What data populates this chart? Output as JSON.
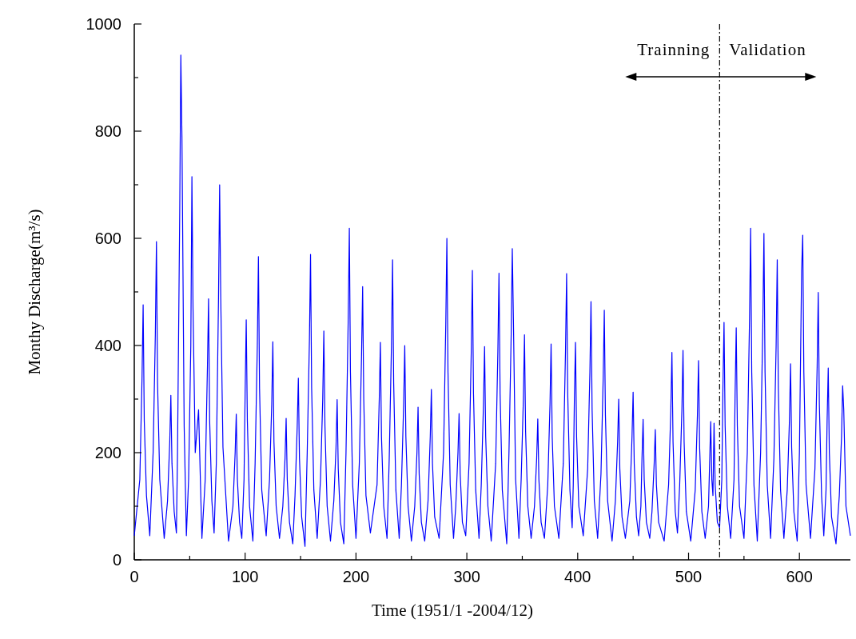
{
  "chart_data": {
    "type": "line",
    "xlabel": "Time (1951/1 -2004/12)",
    "ylabel": "Monthy Discharge(m³/s)",
    "xlim": [
      0,
      646
    ],
    "ylim": [
      0,
      1000
    ],
    "xticks": [
      0,
      {
        "value": 50,
        "label": null
      },
      100,
      {
        "value": 150,
        "label": null
      },
      200,
      {
        "value": 250,
        "label": null
      },
      300,
      {
        "value": 350,
        "label": null
      },
      400,
      {
        "value": 450,
        "label": null
      },
      500,
      {
        "value": 550,
        "label": null
      },
      600
    ],
    "yticks": [
      0,
      {
        "value": 100,
        "label": null
      },
      200,
      {
        "value": 300,
        "label": null
      },
      400,
      {
        "value": 500,
        "label": null
      },
      600,
      {
        "value": 700,
        "label": null
      },
      800,
      {
        "value": 900,
        "label": null
      },
      1000
    ],
    "grid": false,
    "marker": "none",
    "line_style": "solid",
    "annotations": [
      "Trainning",
      "Validation"
    ],
    "ref_lines": [
      {
        "axis": "x",
        "value": 528,
        "color": "#000000",
        "line_style": "dashed"
      }
    ],
    "series": [
      {
        "color": "#0000ff",
        "x": [
          0,
          5,
          7,
          8,
          9,
          11,
          14,
          17,
          19,
          20,
          21,
          23,
          27,
          30,
          32,
          33,
          34,
          36,
          38,
          39,
          41,
          42,
          43,
          45,
          47,
          49,
          51,
          52,
          53,
          55,
          58,
          61,
          64,
          66,
          67,
          68,
          70,
          72,
          74,
          76,
          77,
          78,
          80,
          85,
          89,
          91,
          92,
          93,
          95,
          97,
          99,
          100,
          101,
          102,
          104,
          107,
          109,
          111,
          112,
          113,
          115,
          119,
          122,
          124,
          125,
          126,
          128,
          131,
          134,
          136,
          137,
          138,
          140,
          143,
          145,
          147,
          148,
          149,
          151,
          154,
          156,
          158,
          159,
          160,
          162,
          165,
          168,
          170,
          171,
          172,
          174,
          177,
          180,
          182,
          183,
          184,
          186,
          189,
          191,
          193,
          194,
          195,
          197,
          200,
          203,
          205,
          206,
          207,
          209,
          213,
          219,
          221,
          222,
          223,
          225,
          228,
          230,
          232,
          233,
          234,
          236,
          239,
          241,
          243,
          244,
          245,
          247,
          250,
          253,
          255,
          256,
          257,
          259,
          262,
          265,
          267,
          268,
          269,
          271,
          275,
          279,
          281,
          282,
          283,
          285,
          288,
          290,
          292,
          293,
          294,
          296,
          299,
          302,
          304,
          305,
          306,
          308,
          311,
          313,
          315,
          316,
          317,
          319,
          322,
          326,
          328,
          329,
          330,
          332,
          336,
          338,
          340,
          341,
          342,
          344,
          347,
          349,
          351,
          352,
          353,
          355,
          358,
          361,
          363,
          364,
          365,
          367,
          370,
          373,
          375,
          376,
          377,
          379,
          383,
          387,
          389,
          390,
          391,
          393,
          395,
          396,
          397,
          398,
          399,
          401,
          405,
          409,
          411,
          412,
          413,
          415,
          418,
          421,
          423,
          424,
          425,
          427,
          431,
          434,
          436,
          437,
          438,
          440,
          443,
          447,
          449,
          450,
          451,
          453,
          455,
          457,
          458,
          459,
          460,
          462,
          465,
          467,
          469,
          470,
          471,
          473,
          478,
          482,
          484,
          485,
          486,
          488,
          490,
          492,
          494,
          495,
          496,
          498,
          502,
          506,
          508,
          509,
          510,
          512,
          515,
          518,
          519,
          520,
          521,
          522,
          523,
          524,
          526,
          528,
          530,
          531,
          532,
          533,
          535,
          538,
          541,
          542,
          543,
          544,
          546,
          550,
          553,
          555,
          556,
          557,
          559,
          562,
          565,
          567,
          568,
          569,
          571,
          574,
          577,
          579,
          580,
          581,
          583,
          586,
          589,
          591,
          592,
          593,
          595,
          598,
          600,
          602,
          603,
          604,
          606,
          610,
          614,
          616,
          617,
          618,
          620,
          622,
          624,
          625,
          626,
          627,
          629,
          633,
          636,
          638,
          639,
          640,
          642,
          646
        ],
        "values": [
          45,
          150,
          340,
          476,
          260,
          120,
          45,
          200,
          420,
          594,
          330,
          150,
          40,
          110,
          220,
          307,
          180,
          90,
          50,
          200,
          650,
          942,
          790,
          250,
          45,
          150,
          400,
          715,
          470,
          200,
          280,
          40,
          150,
          360,
          487,
          260,
          110,
          50,
          180,
          490,
          700,
          490,
          210,
          35,
          100,
          200,
          272,
          150,
          70,
          40,
          150,
          310,
          448,
          260,
          100,
          35,
          180,
          400,
          566,
          320,
          130,
          45,
          150,
          290,
          407,
          220,
          100,
          40,
          100,
          190,
          264,
          150,
          70,
          30,
          120,
          250,
          339,
          190,
          80,
          25,
          200,
          410,
          570,
          320,
          130,
          40,
          150,
          300,
          427,
          250,
          100,
          35,
          110,
          210,
          299,
          170,
          70,
          30,
          200,
          450,
          619,
          350,
          140,
          40,
          180,
          380,
          510,
          300,
          120,
          50,
          140,
          300,
          406,
          230,
          100,
          40,
          190,
          400,
          560,
          330,
          130,
          40,
          140,
          290,
          400,
          230,
          100,
          35,
          100,
          200,
          285,
          160,
          70,
          35,
          110,
          230,
          318,
          180,
          80,
          40,
          200,
          440,
          600,
          350,
          140,
          40,
          100,
          200,
          273,
          160,
          70,
          45,
          180,
          390,
          540,
          310,
          130,
          40,
          140,
          290,
          398,
          230,
          100,
          35,
          180,
          390,
          535,
          310,
          130,
          30,
          200,
          420,
          581,
          450,
          150,
          40,
          150,
          300,
          420,
          240,
          100,
          40,
          100,
          190,
          263,
          150,
          70,
          40,
          140,
          290,
          403,
          230,
          100,
          40,
          180,
          390,
          534,
          310,
          130,
          60,
          140,
          300,
          406,
          230,
          100,
          45,
          170,
          350,
          482,
          280,
          110,
          40,
          160,
          340,
          466,
          270,
          110,
          35,
          110,
          220,
          300,
          170,
          80,
          40,
          110,
          230,
          313,
          180,
          80,
          45,
          100,
          190,
          262,
          150,
          70,
          40,
          90,
          180,
          243,
          140,
          70,
          35,
          140,
          280,
          387,
          220,
          90,
          50,
          140,
          280,
          391,
          220,
          90,
          35,
          130,
          270,
          372,
          210,
          90,
          40,
          100,
          180,
          258,
          150,
          120,
          255,
          140,
          70,
          60,
          150,
          320,
          443,
          250,
          100,
          40,
          150,
          310,
          433,
          250,
          100,
          40,
          200,
          450,
          619,
          350,
          140,
          35,
          200,
          440,
          609,
          350,
          140,
          40,
          190,
          400,
          560,
          320,
          130,
          40,
          130,
          260,
          366,
          210,
          90,
          35,
          200,
          540,
          606,
          350,
          140,
          40,
          170,
          360,
          499,
          290,
          120,
          45,
          130,
          260,
          358,
          200,
          80,
          30,
          120,
          230,
          325,
          280,
          100,
          45
        ]
      }
    ]
  }
}
